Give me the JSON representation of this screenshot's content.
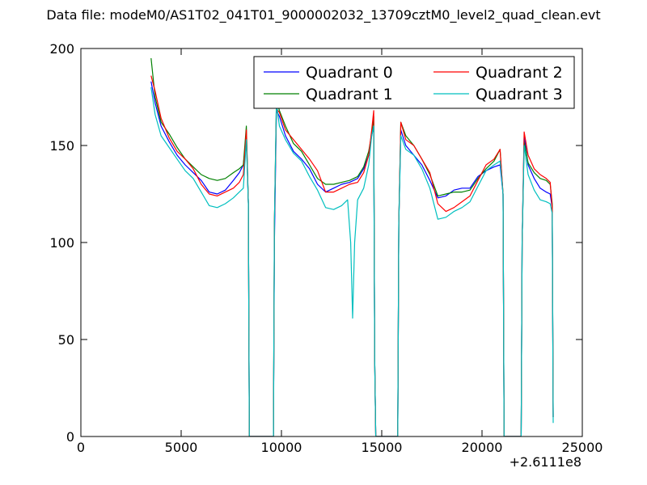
{
  "chart_data": {
    "type": "line",
    "title": "Data file: modeM0/AS1T02_041T01_9000002032_13709cztM0_level2_quad_clean.evt",
    "xlabel": "",
    "ylabel": "",
    "x_offset_label": "+2.6111e8",
    "xlim": [
      0,
      25000
    ],
    "ylim": [
      0,
      200
    ],
    "x_ticks": [
      0,
      5000,
      10000,
      15000,
      20000,
      25000
    ],
    "y_ticks": [
      0,
      50,
      100,
      150,
      200
    ],
    "grid": false,
    "legend_position": "top-right",
    "series": [
      {
        "name": "Quadrant 0",
        "color": "#0000ff",
        "points": [
          [
            3500,
            183
          ],
          [
            3700,
            172
          ],
          [
            4000,
            160
          ],
          [
            4400,
            152
          ],
          [
            4800,
            145
          ],
          [
            5200,
            140
          ],
          [
            5600,
            136
          ],
          [
            6000,
            132
          ],
          [
            6400,
            126
          ],
          [
            6800,
            125
          ],
          [
            7200,
            127
          ],
          [
            7600,
            132
          ],
          [
            7900,
            136
          ],
          [
            8100,
            140
          ],
          [
            8250,
            155
          ],
          [
            8350,
            120
          ],
          [
            8400,
            0
          ],
          [
            9600,
            0
          ],
          [
            9650,
            100
          ],
          [
            9750,
            168
          ],
          [
            9900,
            165
          ],
          [
            10200,
            155
          ],
          [
            10600,
            147
          ],
          [
            11000,
            143
          ],
          [
            11400,
            138
          ],
          [
            11800,
            130
          ],
          [
            12200,
            126
          ],
          [
            12600,
            128
          ],
          [
            13000,
            130
          ],
          [
            13400,
            131
          ],
          [
            13800,
            133
          ],
          [
            14100,
            138
          ],
          [
            14350,
            145
          ],
          [
            14500,
            155
          ],
          [
            14600,
            160
          ],
          [
            14650,
            40
          ],
          [
            14700,
            0
          ],
          [
            15800,
            0
          ],
          [
            15850,
            110
          ],
          [
            15950,
            158
          ],
          [
            16200,
            150
          ],
          [
            16600,
            145
          ],
          [
            17000,
            140
          ],
          [
            17400,
            132
          ],
          [
            17800,
            123
          ],
          [
            18200,
            124
          ],
          [
            18600,
            127
          ],
          [
            19000,
            128
          ],
          [
            19400,
            128
          ],
          [
            19800,
            134
          ],
          [
            20200,
            137
          ],
          [
            20600,
            139
          ],
          [
            20900,
            140
          ],
          [
            21050,
            125
          ],
          [
            21100,
            0
          ],
          [
            21950,
            0
          ],
          [
            22000,
            100
          ],
          [
            22100,
            155
          ],
          [
            22300,
            140
          ],
          [
            22600,
            133
          ],
          [
            22900,
            128
          ],
          [
            23200,
            126
          ],
          [
            23400,
            125
          ],
          [
            23500,
            118
          ],
          [
            23550,
            10
          ]
        ]
      },
      {
        "name": "Quadrant 1",
        "color": "#008000",
        "points": [
          [
            3500,
            195
          ],
          [
            3700,
            175
          ],
          [
            4000,
            162
          ],
          [
            4400,
            156
          ],
          [
            4800,
            149
          ],
          [
            5200,
            143
          ],
          [
            5600,
            139
          ],
          [
            6000,
            135
          ],
          [
            6400,
            133
          ],
          [
            6800,
            132
          ],
          [
            7200,
            133
          ],
          [
            7600,
            136
          ],
          [
            7900,
            138
          ],
          [
            8100,
            140
          ],
          [
            8250,
            160
          ],
          [
            8350,
            120
          ],
          [
            8400,
            0
          ],
          [
            9600,
            0
          ],
          [
            9650,
            110
          ],
          [
            9750,
            174
          ],
          [
            9900,
            168
          ],
          [
            10200,
            160
          ],
          [
            10600,
            151
          ],
          [
            11000,
            147
          ],
          [
            11400,
            140
          ],
          [
            11800,
            133
          ],
          [
            12200,
            130
          ],
          [
            12600,
            130
          ],
          [
            13000,
            131
          ],
          [
            13400,
            132
          ],
          [
            13800,
            134
          ],
          [
            14100,
            139
          ],
          [
            14350,
            147
          ],
          [
            14500,
            156
          ],
          [
            14600,
            165
          ],
          [
            14650,
            40
          ],
          [
            14700,
            0
          ],
          [
            15800,
            0
          ],
          [
            15850,
            110
          ],
          [
            15950,
            162
          ],
          [
            16200,
            155
          ],
          [
            16600,
            150
          ],
          [
            17000,
            143
          ],
          [
            17400,
            135
          ],
          [
            17800,
            124
          ],
          [
            18200,
            125
          ],
          [
            18600,
            126
          ],
          [
            19000,
            126
          ],
          [
            19400,
            127
          ],
          [
            19800,
            133
          ],
          [
            20200,
            138
          ],
          [
            20600,
            142
          ],
          [
            20900,
            148
          ],
          [
            21050,
            125
          ],
          [
            21100,
            0
          ],
          [
            21950,
            0
          ],
          [
            22000,
            100
          ],
          [
            22100,
            152
          ],
          [
            22300,
            141
          ],
          [
            22600,
            136
          ],
          [
            22900,
            133
          ],
          [
            23200,
            132
          ],
          [
            23400,
            130
          ],
          [
            23500,
            120
          ],
          [
            23550,
            10
          ]
        ]
      },
      {
        "name": "Quadrant 2",
        "color": "#ff0000",
        "points": [
          [
            3500,
            186
          ],
          [
            3700,
            178
          ],
          [
            4000,
            164
          ],
          [
            4400,
            154
          ],
          [
            4800,
            147
          ],
          [
            5200,
            143
          ],
          [
            5600,
            138
          ],
          [
            6000,
            130
          ],
          [
            6400,
            125
          ],
          [
            6800,
            124
          ],
          [
            7200,
            126
          ],
          [
            7600,
            128
          ],
          [
            7900,
            131
          ],
          [
            8100,
            135
          ],
          [
            8250,
            158
          ],
          [
            8350,
            120
          ],
          [
            8400,
            0
          ],
          [
            9600,
            0
          ],
          [
            9650,
            110
          ],
          [
            9750,
            169
          ],
          [
            9900,
            167
          ],
          [
            10200,
            158
          ],
          [
            10600,
            153
          ],
          [
            11000,
            148
          ],
          [
            11400,
            143
          ],
          [
            11800,
            137
          ],
          [
            12200,
            126
          ],
          [
            12600,
            126
          ],
          [
            13000,
            128
          ],
          [
            13400,
            130
          ],
          [
            13800,
            131
          ],
          [
            14100,
            136
          ],
          [
            14350,
            145
          ],
          [
            14500,
            158
          ],
          [
            14600,
            168
          ],
          [
            14650,
            40
          ],
          [
            14700,
            0
          ],
          [
            15800,
            0
          ],
          [
            15850,
            110
          ],
          [
            15950,
            162
          ],
          [
            16200,
            153
          ],
          [
            16600,
            150
          ],
          [
            17000,
            143
          ],
          [
            17400,
            136
          ],
          [
            17800,
            120
          ],
          [
            18200,
            116
          ],
          [
            18600,
            118
          ],
          [
            19000,
            121
          ],
          [
            19400,
            124
          ],
          [
            19800,
            132
          ],
          [
            20200,
            140
          ],
          [
            20600,
            143
          ],
          [
            20900,
            148
          ],
          [
            21050,
            125
          ],
          [
            21100,
            0
          ],
          [
            21950,
            0
          ],
          [
            22000,
            100
          ],
          [
            22100,
            157
          ],
          [
            22300,
            145
          ],
          [
            22600,
            138
          ],
          [
            22900,
            135
          ],
          [
            23200,
            133
          ],
          [
            23400,
            131
          ],
          [
            23500,
            118
          ],
          [
            23550,
            10
          ]
        ]
      },
      {
        "name": "Quadrant 3",
        "color": "#00bfbf",
        "points": [
          [
            3500,
            180
          ],
          [
            3700,
            166
          ],
          [
            4000,
            155
          ],
          [
            4400,
            149
          ],
          [
            4800,
            143
          ],
          [
            5200,
            137
          ],
          [
            5600,
            133
          ],
          [
            6000,
            126
          ],
          [
            6400,
            119
          ],
          [
            6800,
            118
          ],
          [
            7200,
            120
          ],
          [
            7600,
            123
          ],
          [
            7900,
            126
          ],
          [
            8100,
            128
          ],
          [
            8250,
            153
          ],
          [
            8350,
            120
          ],
          [
            8400,
            0
          ],
          [
            9600,
            0
          ],
          [
            9650,
            110
          ],
          [
            9750,
            172
          ],
          [
            9900,
            160
          ],
          [
            10200,
            153
          ],
          [
            10600,
            146
          ],
          [
            11000,
            142
          ],
          [
            11400,
            134
          ],
          [
            11800,
            127
          ],
          [
            12200,
            118
          ],
          [
            12600,
            117
          ],
          [
            13000,
            119
          ],
          [
            13300,
            122
          ],
          [
            13450,
            100
          ],
          [
            13550,
            61
          ],
          [
            13650,
            100
          ],
          [
            13800,
            122
          ],
          [
            14100,
            128
          ],
          [
            14350,
            140
          ],
          [
            14500,
            155
          ],
          [
            14600,
            160
          ],
          [
            14650,
            40
          ],
          [
            14700,
            0
          ],
          [
            15800,
            0
          ],
          [
            15850,
            110
          ],
          [
            15950,
            155
          ],
          [
            16200,
            148
          ],
          [
            16600,
            145
          ],
          [
            17000,
            138
          ],
          [
            17400,
            128
          ],
          [
            17800,
            112
          ],
          [
            18200,
            113
          ],
          [
            18600,
            116
          ],
          [
            19000,
            118
          ],
          [
            19400,
            121
          ],
          [
            19800,
            129
          ],
          [
            20200,
            137
          ],
          [
            20600,
            140
          ],
          [
            20900,
            142
          ],
          [
            21050,
            125
          ],
          [
            21100,
            0
          ],
          [
            21950,
            0
          ],
          [
            22000,
            100
          ],
          [
            22100,
            150
          ],
          [
            22300,
            135
          ],
          [
            22600,
            127
          ],
          [
            22900,
            122
          ],
          [
            23200,
            121
          ],
          [
            23400,
            120
          ],
          [
            23500,
            115
          ],
          [
            23550,
            7
          ]
        ]
      }
    ]
  }
}
